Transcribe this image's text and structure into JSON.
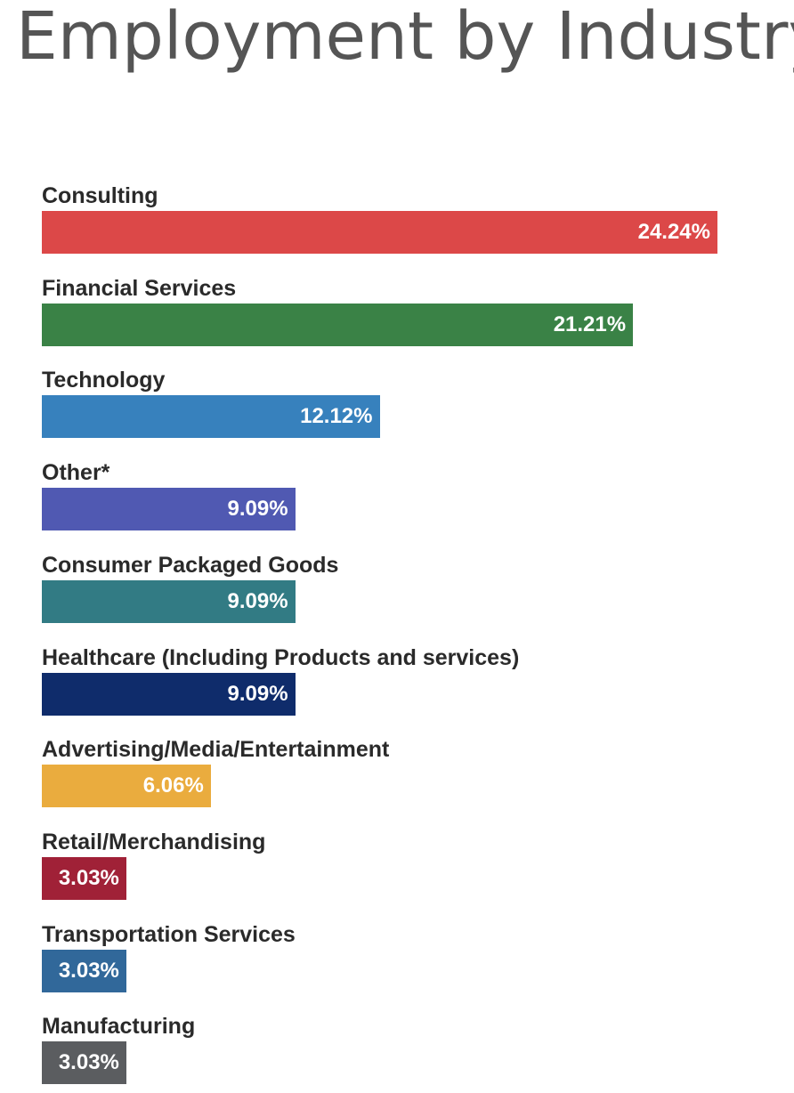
{
  "page": {
    "title": "Employment by Industry"
  },
  "chart_data": {
    "type": "bar",
    "orientation": "horizontal",
    "title": "Employment by Industry",
    "xlabel": "",
    "ylabel": "",
    "xlim": [
      0,
      24.24
    ],
    "grid": false,
    "legend": "none",
    "value_suffix": "%",
    "categories": [
      "Consulting",
      "Financial Services",
      "Technology",
      "Other*",
      "Consumer Packaged Goods",
      "Healthcare (Including Products and services)",
      "Advertising/Media/Entertainment",
      "Retail/Merchandising",
      "Transportation Services",
      "Manufacturing"
    ],
    "values": [
      24.24,
      21.21,
      12.12,
      9.09,
      9.09,
      9.09,
      6.06,
      3.03,
      3.03,
      3.03
    ],
    "value_labels": [
      "24.24%",
      "21.21%",
      "12.12%",
      "9.09%",
      "9.09%",
      "9.09%",
      "6.06%",
      "3.03%",
      "3.03%",
      "3.03%"
    ],
    "colors": [
      "#dc4848",
      "#3a8246",
      "#3781bd",
      "#5059b2",
      "#327b84",
      "#0f2c6b",
      "#eaac3e",
      "#a02137",
      "#31689a",
      "#5b5d60"
    ]
  }
}
